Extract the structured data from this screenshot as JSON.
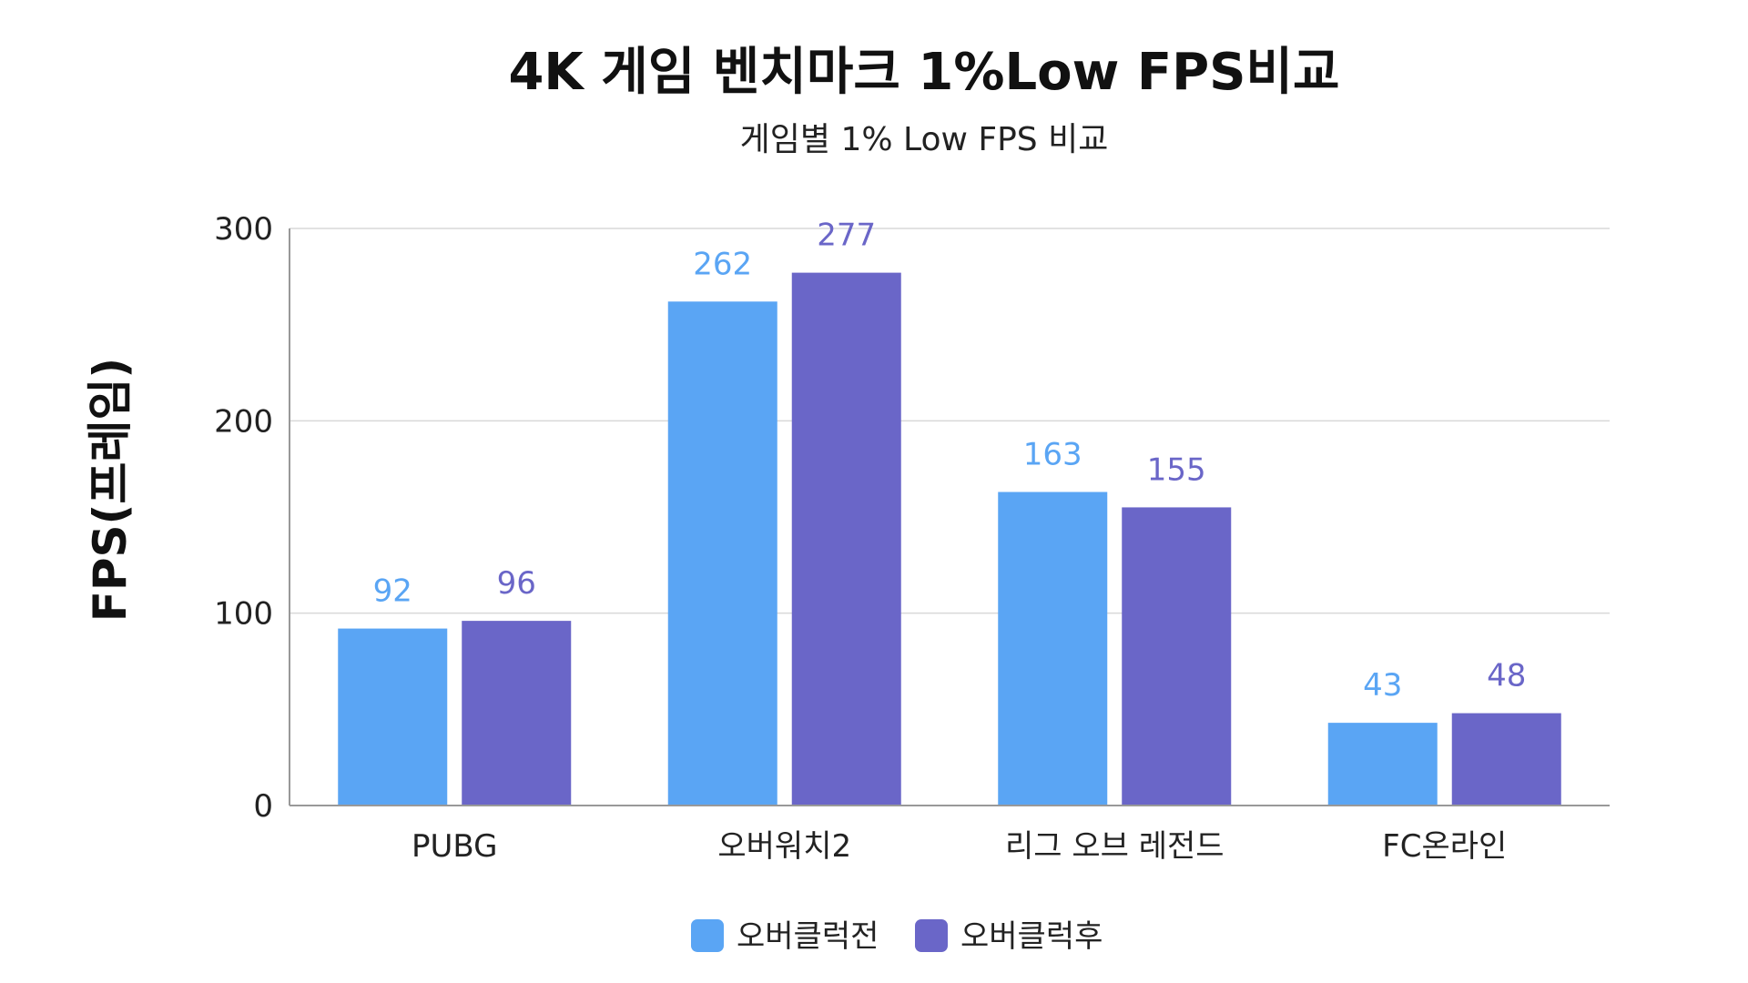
{
  "chart_data": {
    "type": "bar",
    "title": "4K 게임 벤치마크 1%Low FPS비교",
    "subtitle": "게임별 1% Low FPS 비교",
    "xlabel": "",
    "ylabel": "FPS(프레임)",
    "ylim": [
      0,
      300
    ],
    "yticks": [
      "0",
      "100",
      "200",
      "300"
    ],
    "grid": true,
    "legend_position": "bottom-center",
    "categories": [
      "PUBG",
      "오버워치2",
      "리그 오브 레전드",
      "FC온라인"
    ],
    "series": [
      {
        "name": "오버클럭전",
        "color": "#5aa5f4",
        "values": [
          92,
          262,
          163,
          43
        ]
      },
      {
        "name": "오버클럭후",
        "color": "#6a66c8",
        "values": [
          96,
          277,
          155,
          48
        ]
      }
    ]
  }
}
